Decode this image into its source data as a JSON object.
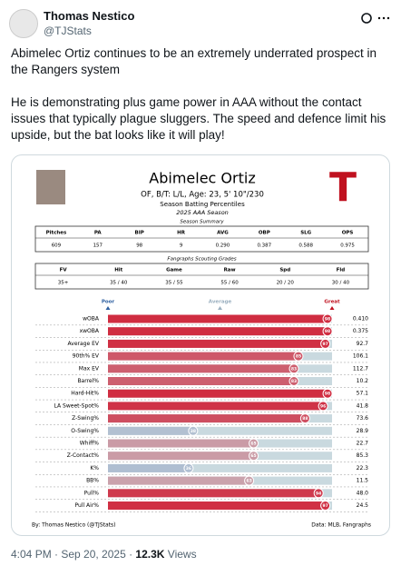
{
  "tweet": {
    "author": "Thomas Nestico",
    "handle": "@TJStats",
    "paragraphs": [
      "Abimelec Ortiz continues to be an extremely underrated prospect in the Rangers system",
      "He is demonstrating plus game power in AAA without the contact issues that typically plague sluggers. The speed and defence limit his upside, but the bat looks like it will play!"
    ],
    "time": "4:04 PM · Sep 20, 2025 · ",
    "views": "12.3K",
    "views_label": " Views"
  },
  "card": {
    "name": "Abimelec Ortiz",
    "bio": "OF, B/T: L/L, Age: 23, 5' 10\"/230",
    "subtitle": "Season Batting Percentiles",
    "season": "2025 AAA Season",
    "summary": {
      "title": "Season Summary",
      "headers": [
        "Pitches",
        "PA",
        "BIP",
        "HR",
        "AVG",
        "OBP",
        "SLG",
        "OPS"
      ],
      "values": [
        "609",
        "157",
        "98",
        "9",
        "0.290",
        "0.387",
        "0.588",
        "0.975"
      ]
    },
    "grades": {
      "title": "Fangraphs Scouting Grades",
      "headers": [
        "FV",
        "Hit",
        "Game",
        "Raw",
        "Spd",
        "Fld"
      ],
      "values": [
        "35+",
        "35 / 40",
        "35 / 55",
        "55 / 60",
        "20 / 20",
        "30 / 40"
      ]
    },
    "scale": [
      "Poor",
      "Average",
      "Great"
    ],
    "stats": [
      {
        "name": "wOBA",
        "percentile": 98,
        "value": "0.410"
      },
      {
        "name": "xwOBA",
        "percentile": 98,
        "value": "0.375"
      },
      {
        "name": "Average EV",
        "percentile": 97,
        "value": "92.7"
      },
      {
        "name": "90th% EV",
        "percentile": 85,
        "value": "106.1"
      },
      {
        "name": "Max EV",
        "percentile": 83,
        "value": "112.7"
      },
      {
        "name": "Barrel%",
        "percentile": 83,
        "value": "10.2"
      },
      {
        "name": "Hard-Hit%",
        "percentile": 98,
        "value": "57.1"
      },
      {
        "name": "LA Sweet-Spot%",
        "percentile": 96,
        "value": "41.8"
      },
      {
        "name": "Z-Swing%",
        "percentile": 88,
        "value": "73.6"
      },
      {
        "name": "O-Swing%",
        "percentile": 38,
        "value": "28.9"
      },
      {
        "name": "Whiff%",
        "percentile": 65,
        "value": "22.7"
      },
      {
        "name": "Z-Contact%",
        "percentile": 65,
        "value": "85.3"
      },
      {
        "name": "K%",
        "percentile": 36,
        "value": "22.3"
      },
      {
        "name": "BB%",
        "percentile": 63,
        "value": "11.5"
      },
      {
        "name": "Pull%",
        "percentile": 94,
        "value": "48.0"
      },
      {
        "name": "Pull Air%",
        "percentile": 97,
        "value": "24.5"
      }
    ],
    "credit": "By: Thomas Nestico (@TJStats)",
    "source": "Data: MLB, Fangraphs"
  }
}
